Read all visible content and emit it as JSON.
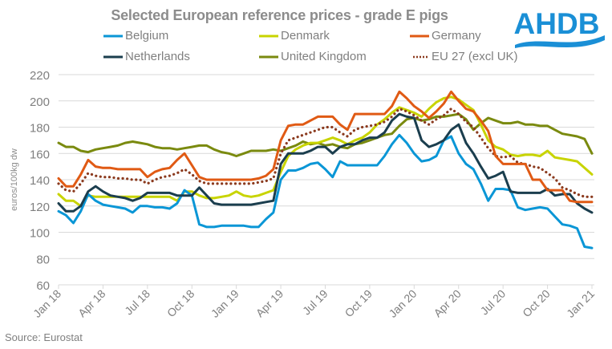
{
  "chart_data": {
    "type": "line",
    "title": "Selected European reference prices - grade E pigs",
    "xlabel": "",
    "ylabel": "euros/100kg dw",
    "ylim": [
      60,
      220
    ],
    "yticks": [
      60,
      80,
      100,
      120,
      140,
      160,
      180,
      200,
      220
    ],
    "grid": "horizontal",
    "legend_position": "top",
    "xtick_labels": [
      "Jan 18",
      "Apr 18",
      "Jul 18",
      "Oct 18",
      "Jan 19",
      "Apr 19",
      "Jul 19",
      "Oct 19",
      "Jan 20",
      "Apr 20",
      "Jul 20",
      "Oct 20",
      "Jan 21"
    ],
    "x_period": "semi-monthly, Jan 2018 to Jan 2021",
    "x": [
      "Jan 18a",
      "Jan 18b",
      "Feb 18a",
      "Feb 18b",
      "Mar 18a",
      "Mar 18b",
      "Apr 18a",
      "Apr 18b",
      "May 18a",
      "May 18b",
      "Jun 18a",
      "Jun 18b",
      "Jul 18a",
      "Jul 18b",
      "Aug 18a",
      "Aug 18b",
      "Sep 18a",
      "Sep 18b",
      "Oct 18a",
      "Oct 18b",
      "Nov 18a",
      "Nov 18b",
      "Dec 18a",
      "Dec 18b",
      "Jan 19a",
      "Jan 19b",
      "Feb 19a",
      "Feb 19b",
      "Mar 19a",
      "Mar 19b",
      "Apr 19a",
      "Apr 19b",
      "May 19a",
      "May 19b",
      "Jun 19a",
      "Jun 19b",
      "Jul 19a",
      "Jul 19b",
      "Aug 19a",
      "Aug 19b",
      "Sep 19a",
      "Sep 19b",
      "Oct 19a",
      "Oct 19b",
      "Nov 19a",
      "Nov 19b",
      "Dec 19a",
      "Dec 19b",
      "Jan 20a",
      "Jan 20b",
      "Feb 20a",
      "Feb 20b",
      "Mar 20a",
      "Mar 20b",
      "Apr 20a",
      "Apr 20b",
      "May 20a",
      "May 20b",
      "Jun 20a",
      "Jun 20b",
      "Jul 20a",
      "Jul 20b",
      "Aug 20a",
      "Aug 20b",
      "Sep 20a",
      "Sep 20b",
      "Oct 20a",
      "Oct 20b",
      "Nov 20a",
      "Nov 20b",
      "Dec 20a",
      "Dec 20b",
      "Jan 21a"
    ],
    "series": [
      {
        "name": "Belgium",
        "color": "#0a96d6",
        "dash": false,
        "values": [
          116,
          113,
          107,
          116,
          129,
          124,
          121,
          120,
          119,
          118,
          115,
          120,
          120,
          119,
          119,
          118,
          122,
          132,
          128,
          106,
          104,
          104,
          105,
          105,
          105,
          105,
          104,
          104,
          110,
          115,
          140,
          147,
          147,
          149,
          152,
          153,
          148,
          142,
          154,
          151,
          151,
          151,
          151,
          151,
          158,
          167,
          174,
          168,
          160,
          154,
          155,
          158,
          170,
          173,
          160,
          152,
          148,
          137,
          124,
          133,
          133,
          132,
          119,
          117,
          118,
          119,
          118,
          112,
          106,
          105,
          103,
          89,
          88
        ]
      },
      {
        "name": "Denmark",
        "color": "#c8d400",
        "dash": false,
        "values": [
          129,
          124,
          124,
          120,
          128,
          127,
          127,
          127,
          127,
          127,
          127,
          127,
          127,
          127,
          127,
          127,
          124,
          131,
          131,
          128,
          126,
          126,
          127,
          128,
          131,
          128,
          127,
          128,
          130,
          132,
          146,
          158,
          163,
          166,
          168,
          168,
          170,
          172,
          170,
          167,
          170,
          172,
          176,
          182,
          186,
          191,
          195,
          193,
          191,
          188,
          194,
          199,
          202,
          203,
          201,
          197,
          193,
          182,
          170,
          165,
          163,
          159,
          158,
          159,
          159,
          158,
          162,
          157,
          156,
          155,
          154,
          149,
          144
        ]
      },
      {
        "name": "Germany",
        "color": "#e05a14",
        "dash": false,
        "values": [
          141,
          135,
          135,
          144,
          155,
          150,
          149,
          149,
          148,
          148,
          148,
          148,
          142,
          146,
          148,
          149,
          155,
          160,
          151,
          142,
          140,
          140,
          140,
          140,
          140,
          140,
          140,
          141,
          143,
          148,
          170,
          181,
          182,
          182,
          185,
          188,
          188,
          188,
          182,
          178,
          190,
          190,
          190,
          190,
          190,
          196,
          207,
          202,
          196,
          192,
          187,
          192,
          198,
          207,
          200,
          194,
          192,
          185,
          177,
          158,
          152,
          152,
          152,
          152,
          140,
          140,
          132,
          132,
          132,
          124,
          123,
          123,
          123
        ]
      },
      {
        "name": "Netherlands",
        "color": "#1b3e4e",
        "dash": false,
        "values": [
          122,
          116,
          116,
          120,
          131,
          135,
          131,
          128,
          127,
          126,
          124,
          126,
          130,
          130,
          130,
          130,
          128,
          128,
          128,
          134,
          128,
          122,
          121,
          121,
          121,
          121,
          121,
          122,
          123,
          124,
          152,
          160,
          160,
          160,
          162,
          165,
          165,
          160,
          165,
          167,
          167,
          170,
          172,
          172,
          176,
          185,
          190,
          188,
          187,
          170,
          165,
          167,
          170,
          178,
          182,
          168,
          160,
          150,
          141,
          143,
          146,
          131,
          130,
          130,
          130,
          130,
          133,
          128,
          129,
          129,
          122,
          118,
          115
        ]
      },
      {
        "name": "United Kingdom",
        "color": "#7a8a0f",
        "dash": false,
        "values": [
          168,
          165,
          165,
          162,
          161,
          163,
          164,
          165,
          166,
          168,
          169,
          168,
          167,
          165,
          164,
          164,
          163,
          164,
          165,
          166,
          166,
          163,
          161,
          160,
          158,
          160,
          162,
          162,
          162,
          163,
          162,
          164,
          166,
          169,
          167,
          168,
          166,
          167,
          165,
          164,
          167,
          168,
          170,
          172,
          174,
          175,
          181,
          186,
          187,
          185,
          186,
          188,
          188,
          189,
          190,
          186,
          178,
          183,
          187,
          185,
          183,
          183,
          184,
          182,
          182,
          181,
          181,
          178,
          175,
          174,
          173,
          171,
          160
        ]
      },
      {
        "name": "EU 27 (excl UK)",
        "color": "#8b3a1e",
        "dash": true,
        "values": [
          137,
          132,
          131,
          137,
          145,
          143,
          142,
          142,
          141,
          141,
          140,
          140,
          137,
          140,
          142,
          143,
          145,
          148,
          144,
          139,
          137,
          137,
          137,
          137,
          137,
          137,
          137,
          138,
          139,
          141,
          160,
          170,
          172,
          174,
          176,
          178,
          180,
          180,
          176,
          173,
          178,
          180,
          181,
          182,
          184,
          188,
          194,
          192,
          189,
          185,
          182,
          186,
          189,
          194,
          190,
          184,
          180,
          172,
          164,
          158,
          157,
          158,
          153,
          152,
          150,
          149,
          145,
          141,
          134,
          132,
          129,
          127,
          127
        ]
      }
    ]
  },
  "logo": {
    "text": "AHDB",
    "color": "#1a8fd6"
  },
  "source": "Source: Eurostat"
}
